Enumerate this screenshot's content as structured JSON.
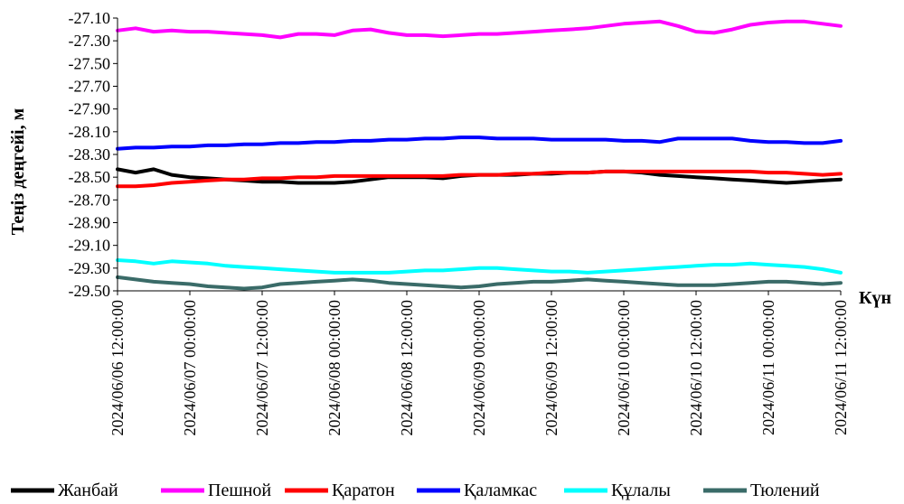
{
  "chart_data": {
    "type": "line",
    "ylabel": "Теңіз деңгейі, м",
    "xlabel": "Күн",
    "x_ticks": [
      "2024/06/06 12:00:00",
      "2024/06/07 00:00:00",
      "2024/06/07 12:00:00",
      "2024/06/08 00:00:00",
      "2024/06/08 12:00:00",
      "2024/06/09 00:00:00",
      "2024/06/09 12:00:00",
      "2024/06/10 00:00:00",
      "2024/06/10 12:00:00",
      "2024/06/11 00:00:00",
      "2024/06/11 12:00:00"
    ],
    "x_range": [
      "2024/06/06 12:00:00",
      "2024/06/11 12:00:00"
    ],
    "y_ticks": [
      "-27.10",
      "-27.30",
      "-27.50",
      "-27.70",
      "-27.90",
      "-28.10",
      "-28.30",
      "-28.50",
      "-28.70",
      "-28.90",
      "-29.10",
      "-29.30",
      "-29.50"
    ],
    "ylim": [
      -29.5,
      -27.1
    ],
    "grid": false,
    "legend_position": "bottom",
    "x": [
      "2024/06/06 12:00",
      "2024/06/06 15:00",
      "2024/06/06 18:00",
      "2024/06/06 21:00",
      "2024/06/07 00:00",
      "2024/06/07 03:00",
      "2024/06/07 06:00",
      "2024/06/07 09:00",
      "2024/06/07 12:00",
      "2024/06/07 15:00",
      "2024/06/07 18:00",
      "2024/06/07 21:00",
      "2024/06/08 00:00",
      "2024/06/08 03:00",
      "2024/06/08 06:00",
      "2024/06/08 09:00",
      "2024/06/08 12:00",
      "2024/06/08 15:00",
      "2024/06/08 18:00",
      "2024/06/08 21:00",
      "2024/06/09 00:00",
      "2024/06/09 03:00",
      "2024/06/09 06:00",
      "2024/06/09 09:00",
      "2024/06/09 12:00",
      "2024/06/09 15:00",
      "2024/06/09 18:00",
      "2024/06/09 21:00",
      "2024/06/10 00:00",
      "2024/06/10 03:00",
      "2024/06/10 06:00",
      "2024/06/10 09:00",
      "2024/06/10 12:00",
      "2024/06/10 15:00",
      "2024/06/10 18:00",
      "2024/06/10 21:00",
      "2024/06/11 00:00",
      "2024/06/11 03:00",
      "2024/06/11 06:00",
      "2024/06/11 09:00",
      "2024/06/11 12:00"
    ],
    "series": [
      {
        "name": "Жанбай",
        "color": "#000000",
        "values": [
          -28.43,
          -28.46,
          -28.43,
          -28.48,
          -28.5,
          -28.51,
          -28.52,
          -28.53,
          -28.54,
          -28.54,
          -28.55,
          -28.55,
          -28.55,
          -28.54,
          -28.52,
          -28.5,
          -28.5,
          -28.5,
          -28.51,
          -28.49,
          -28.48,
          -28.48,
          -28.48,
          -28.47,
          -28.47,
          -28.46,
          -28.46,
          -28.45,
          -28.45,
          -28.46,
          -28.48,
          -28.49,
          -28.5,
          -28.51,
          -28.52,
          -28.53,
          -28.54,
          -28.55,
          -28.54,
          -28.53,
          -28.52
        ]
      },
      {
        "name": "Пешной",
        "color": "#ff00ff",
        "values": [
          -27.21,
          -27.19,
          -27.22,
          -27.21,
          -27.22,
          -27.22,
          -27.23,
          -27.24,
          -27.25,
          -27.27,
          -27.24,
          -27.24,
          -27.25,
          -27.21,
          -27.2,
          -27.23,
          -27.25,
          -27.25,
          -27.26,
          -27.25,
          -27.24,
          -27.24,
          -27.23,
          -27.22,
          -27.21,
          -27.2,
          -27.19,
          -27.17,
          -27.15,
          -27.14,
          -27.13,
          -27.17,
          -27.22,
          -27.23,
          -27.2,
          -27.16,
          -27.14,
          -27.13,
          -27.13,
          -27.15,
          -27.17
        ]
      },
      {
        "name": "Қаратон",
        "color": "#ff0000",
        "values": [
          -28.58,
          -28.58,
          -28.57,
          -28.55,
          -28.54,
          -28.53,
          -28.52,
          -28.52,
          -28.51,
          -28.51,
          -28.5,
          -28.5,
          -28.49,
          -28.49,
          -28.49,
          -28.49,
          -28.49,
          -28.49,
          -28.49,
          -28.48,
          -28.48,
          -28.48,
          -28.47,
          -28.47,
          -28.46,
          -28.46,
          -28.46,
          -28.45,
          -28.45,
          -28.45,
          -28.45,
          -28.45,
          -28.45,
          -28.45,
          -28.45,
          -28.45,
          -28.46,
          -28.46,
          -28.47,
          -28.48,
          -28.47
        ]
      },
      {
        "name": "Қаламкас",
        "color": "#0000ff",
        "values": [
          -28.25,
          -28.24,
          -28.24,
          -28.23,
          -28.23,
          -28.22,
          -28.22,
          -28.21,
          -28.21,
          -28.2,
          -28.2,
          -28.19,
          -28.19,
          -28.18,
          -28.18,
          -28.17,
          -28.17,
          -28.16,
          -28.16,
          -28.15,
          -28.15,
          -28.16,
          -28.16,
          -28.16,
          -28.17,
          -28.17,
          -28.17,
          -28.17,
          -28.18,
          -28.18,
          -28.19,
          -28.16,
          -28.16,
          -28.16,
          -28.16,
          -28.18,
          -28.19,
          -28.19,
          -28.2,
          -28.2,
          -28.18
        ]
      },
      {
        "name": "Құлалы",
        "color": "#00ffff",
        "values": [
          -29.23,
          -29.24,
          -29.26,
          -29.24,
          -29.25,
          -29.26,
          -29.28,
          -29.29,
          -29.3,
          -29.31,
          -29.32,
          -29.33,
          -29.34,
          -29.34,
          -29.34,
          -29.34,
          -29.33,
          -29.32,
          -29.32,
          -29.31,
          -29.3,
          -29.3,
          -29.31,
          -29.32,
          -29.33,
          -29.33,
          -29.34,
          -29.33,
          -29.32,
          -29.31,
          -29.3,
          -29.29,
          -29.28,
          -29.27,
          -29.27,
          -29.26,
          -29.27,
          -29.28,
          -29.29,
          -29.31,
          -29.34
        ]
      },
      {
        "name": "Тюлений",
        "color": "#3a6b68",
        "values": [
          -29.38,
          -29.4,
          -29.42,
          -29.43,
          -29.44,
          -29.46,
          -29.47,
          -29.48,
          -29.47,
          -29.44,
          -29.43,
          -29.42,
          -29.41,
          -29.4,
          -29.41,
          -29.43,
          -29.44,
          -29.45,
          -29.46,
          -29.47,
          -29.46,
          -29.44,
          -29.43,
          -29.42,
          -29.42,
          -29.41,
          -29.4,
          -29.41,
          -29.42,
          -29.43,
          -29.44,
          -29.45,
          -29.45,
          -29.45,
          -29.44,
          -29.43,
          -29.42,
          -29.42,
          -29.43,
          -29.44,
          -29.43
        ]
      }
    ]
  }
}
